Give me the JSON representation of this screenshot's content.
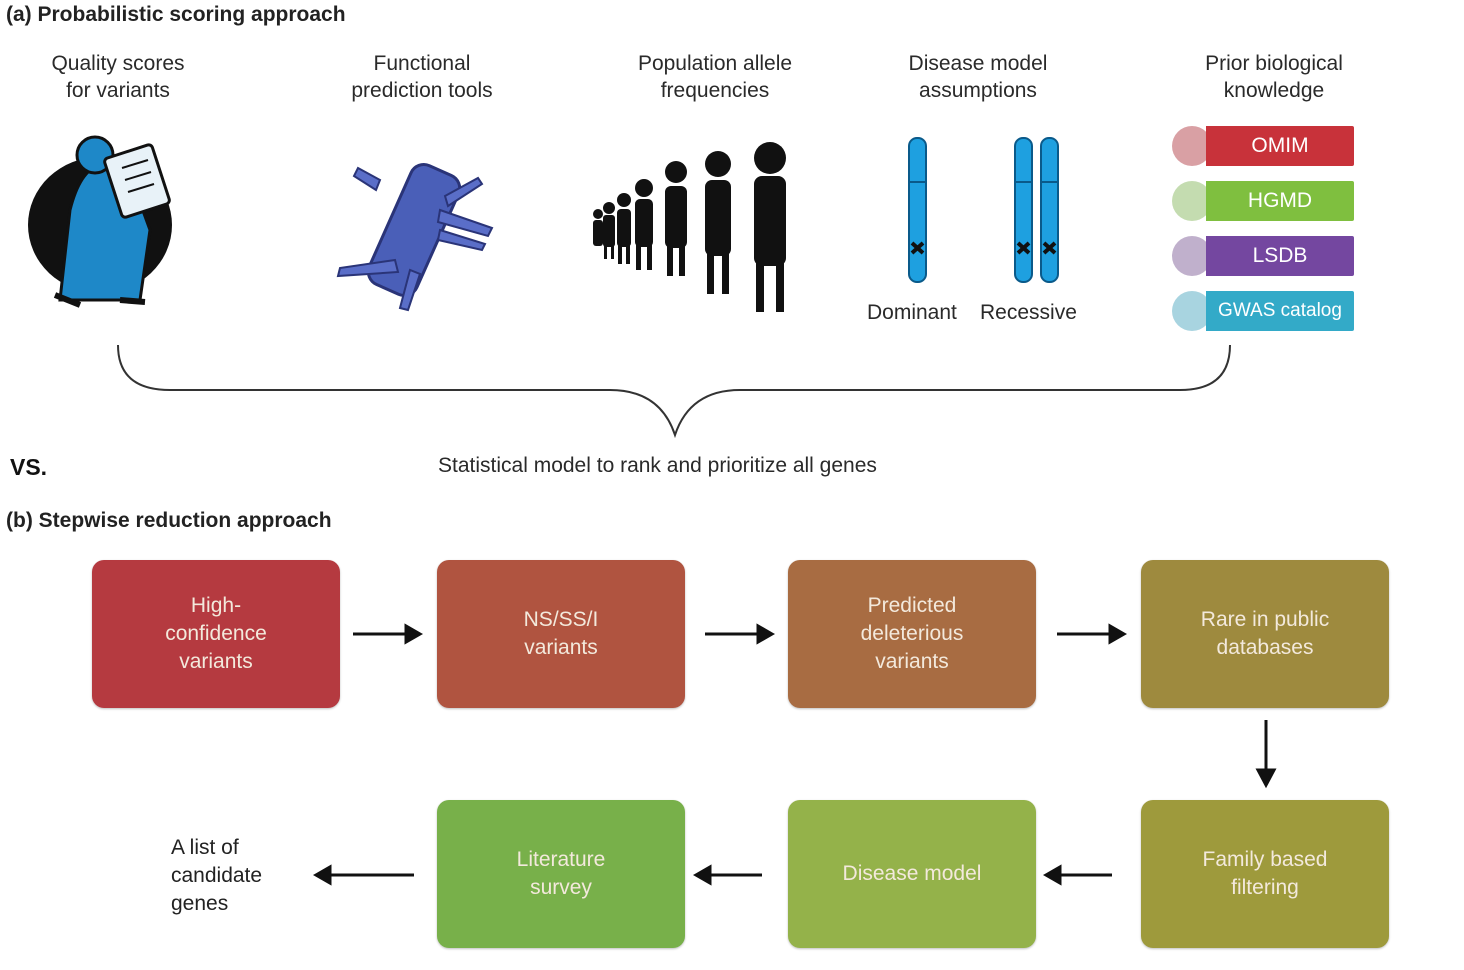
{
  "section_a": {
    "title": "(a) Probabilistic scoring approach",
    "columns": [
      {
        "label": "Quality scores\nfor variants",
        "icon": "inspector-figure-icon"
      },
      {
        "label": "Functional\nprediction tools",
        "icon": "pocket-knife-icon"
      },
      {
        "label": "Population allele\nfrequencies",
        "icon": "people-row-icon"
      },
      {
        "label": "Disease model\nassumptions",
        "icon": "chromosome-icon"
      },
      {
        "label": "Prior biological\nknowledge",
        "icon": "database-icon"
      }
    ],
    "chromosome_labels": {
      "dominant": "Dominant",
      "recessive": "Recessive"
    },
    "databases": [
      {
        "name": "OMIM",
        "color": "#c8323a",
        "circle": "#d9a0a4"
      },
      {
        "name": "HGMD",
        "color": "#7fbf3f",
        "circle": "#c4dcb0"
      },
      {
        "name": "LSDB",
        "color": "#7447a0",
        "circle": "#c0b0cc"
      },
      {
        "name": "GWAS catalog",
        "color": "#33aac8",
        "circle": "#a8d4e0"
      }
    ],
    "caption": "Statistical model to rank and prioritize all genes"
  },
  "vs_label": "VS.",
  "section_b": {
    "title": "(b) Stepwise reduction approach",
    "steps_row1": [
      {
        "label": "High-\nconfidence\nvariants",
        "color": "#b53a40"
      },
      {
        "label": "NS/SS/I\nvariants",
        "color": "#b05440"
      },
      {
        "label": "Predicted\ndeleterious\nvariants",
        "color": "#a86c42"
      },
      {
        "label": "Rare in public\ndatabases",
        "color": "#9e8a3e"
      }
    ],
    "steps_row2": [
      {
        "label": "Literature\nsurvey",
        "color": "#78b04a"
      },
      {
        "label": "Disease model",
        "color": "#94b24a"
      },
      {
        "label": "Family based\nfiltering",
        "color": "#9e9a3c"
      }
    ],
    "result": "A list of\ncandidate\ngenes"
  }
}
